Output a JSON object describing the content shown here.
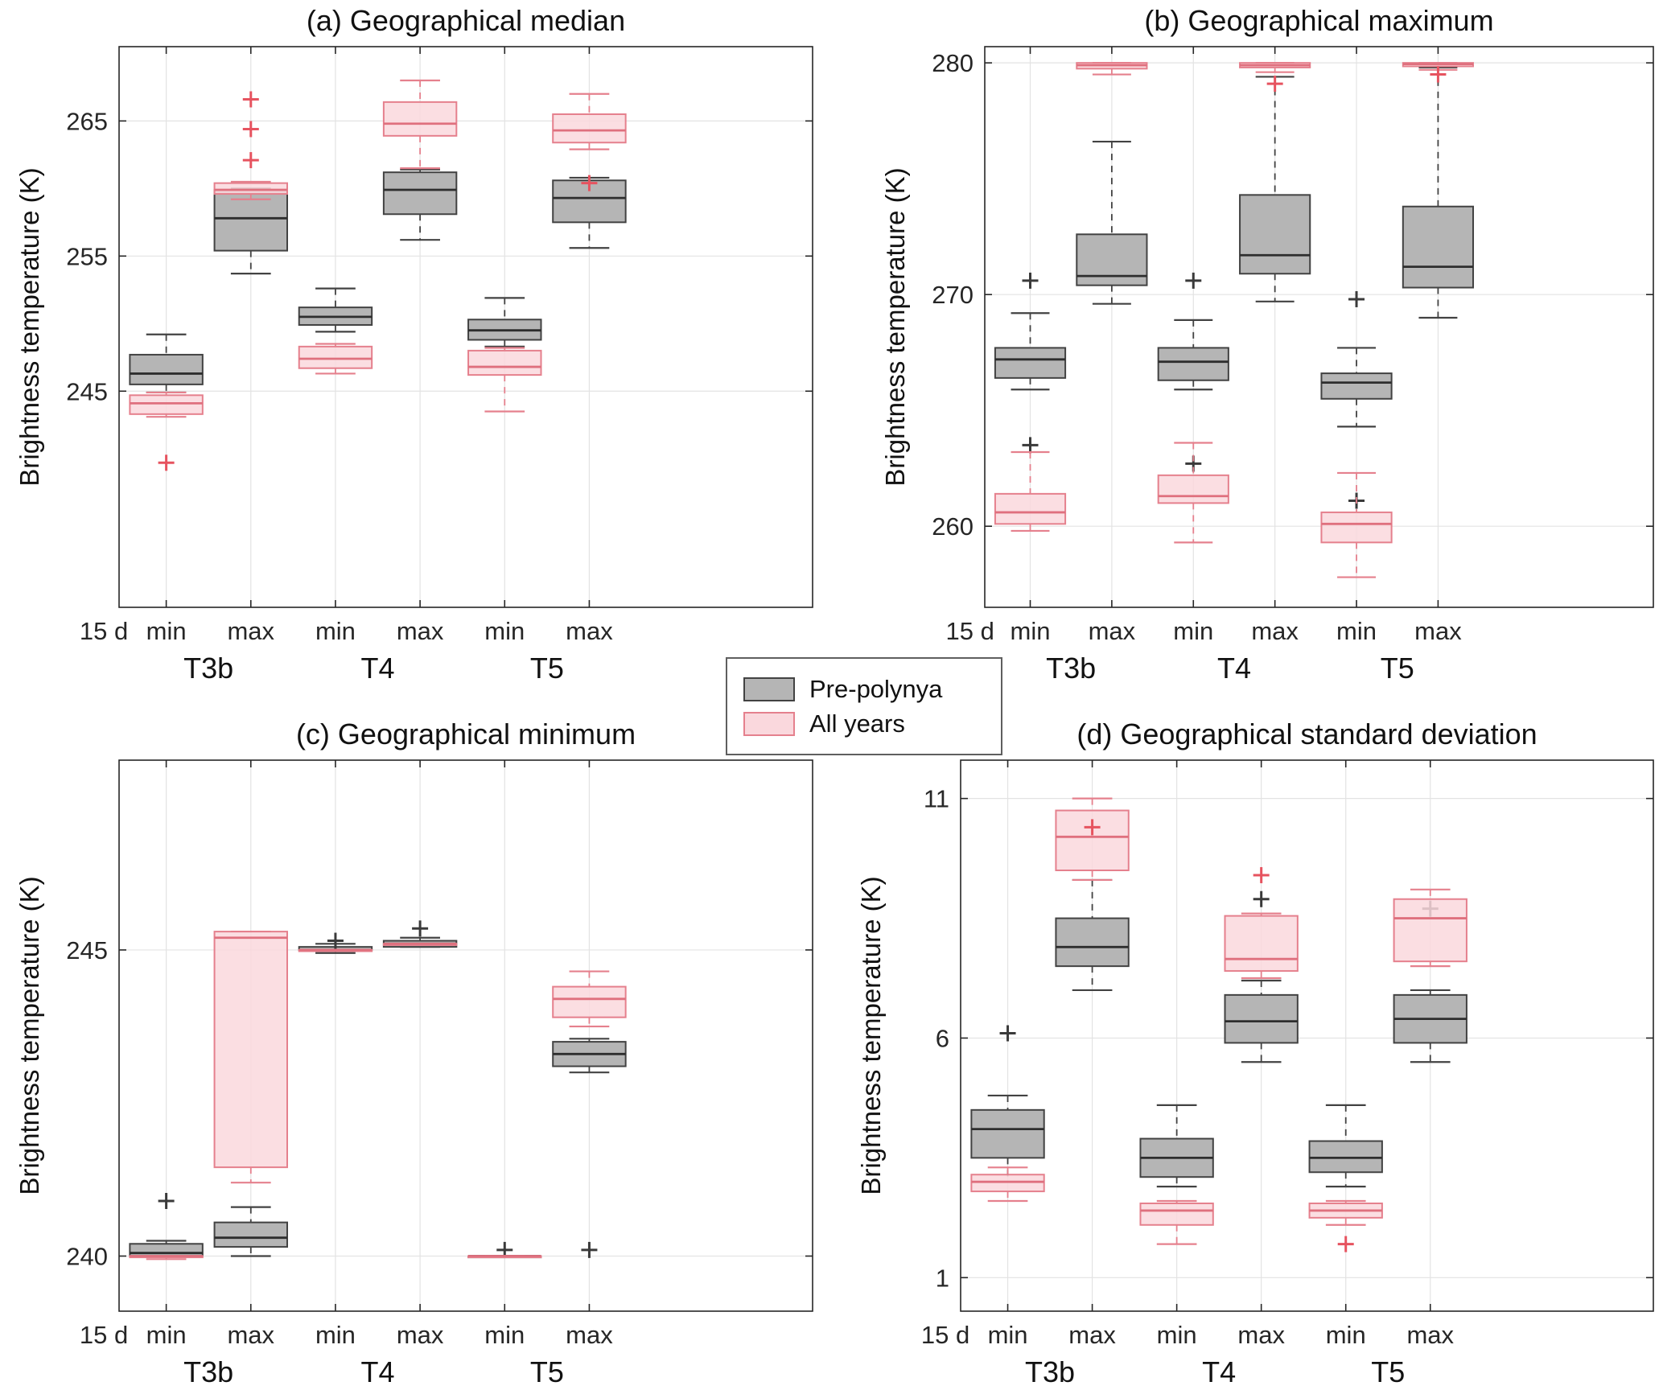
{
  "legend": {
    "items": [
      {
        "label": "Pre-polynya",
        "series": "pre"
      },
      {
        "label": "All years",
        "series": "all"
      }
    ]
  },
  "style": {
    "pre": {
      "fill": "#b5b5b5",
      "edge": "#424242",
      "median": "#2e2e2e",
      "whisker": "#424242",
      "outlier": "#3a3a3a",
      "opacity": 1
    },
    "all": {
      "fill": "#fad8dd",
      "edge": "#e5808d",
      "median": "#df707e",
      "whisker": "#e5808d",
      "outlier": "#e6535f",
      "opacity": 0.85
    },
    "grid": "#e3e3e3",
    "axis": "#262626"
  },
  "chart_data": [
    {
      "type": "boxplot",
      "id": "a",
      "title": "(a) Geographical median",
      "ylabel": "Brightness temperature (K)",
      "ylim": [
        229.0,
        270.5
      ],
      "yticks": [
        245,
        255,
        265
      ],
      "xticklabels": [
        "15 d",
        "min",
        "max",
        "min",
        "max",
        "min",
        "max"
      ],
      "group_labels": [
        "T3b",
        "T4",
        "T5"
      ],
      "boxes": [
        {
          "slot": 1,
          "group": "T3b",
          "window": "min",
          "pre": {
            "lo": 244.9,
            "q1": 245.5,
            "med": 246.3,
            "q3": 247.7,
            "hi": 249.2,
            "out": []
          },
          "all": {
            "lo": 243.1,
            "q1": 243.3,
            "med": 244.1,
            "q3": 244.7,
            "hi": 244.9,
            "out": [
              239.7
            ]
          }
        },
        {
          "slot": 2,
          "group": "T3b",
          "window": "max",
          "pre": {
            "lo": 253.7,
            "q1": 255.4,
            "med": 257.8,
            "q3": 259.9,
            "hi": 260.0,
            "out": []
          },
          "all": {
            "lo": 259.2,
            "q1": 259.6,
            "med": 259.9,
            "q3": 260.4,
            "hi": 260.5,
            "out": [
              266.6,
              264.4,
              262.1
            ]
          }
        },
        {
          "slot": 3,
          "group": "T4",
          "window": "min",
          "pre": {
            "lo": 249.4,
            "q1": 249.9,
            "med": 250.5,
            "q3": 251.2,
            "hi": 252.6,
            "out": []
          },
          "all": {
            "lo": 246.3,
            "q1": 246.7,
            "med": 247.4,
            "q3": 248.3,
            "hi": 248.5,
            "out": []
          }
        },
        {
          "slot": 4,
          "group": "T4",
          "window": "max",
          "pre": {
            "lo": 256.2,
            "q1": 258.1,
            "med": 259.9,
            "q3": 261.2,
            "hi": 261.4,
            "out": []
          },
          "all": {
            "lo": 261.5,
            "q1": 263.9,
            "med": 264.8,
            "q3": 266.4,
            "hi": 268.0,
            "out": []
          }
        },
        {
          "slot": 5,
          "group": "T5",
          "window": "min",
          "pre": {
            "lo": 248.3,
            "q1": 248.8,
            "med": 249.5,
            "q3": 250.3,
            "hi": 251.9,
            "out": []
          },
          "all": {
            "lo": 243.5,
            "q1": 246.2,
            "med": 246.8,
            "q3": 248.0,
            "hi": 248.2,
            "out": []
          }
        },
        {
          "slot": 6,
          "group": "T5",
          "window": "max",
          "pre": {
            "lo": 255.6,
            "q1": 257.5,
            "med": 259.3,
            "q3": 260.6,
            "hi": 260.8,
            "out": []
          },
          "all": {
            "lo": 262.9,
            "q1": 263.4,
            "med": 264.3,
            "q3": 265.5,
            "hi": 267.0,
            "out": [
              260.4
            ]
          }
        }
      ]
    },
    {
      "type": "boxplot",
      "id": "b",
      "title": "(b) Geographical maximum",
      "ylabel": "Brightness temperature (K)",
      "ylim": [
        256.5,
        280.7
      ],
      "yticks": [
        260,
        270,
        280
      ],
      "xticklabels": [
        "15 d",
        "min",
        "max",
        "min",
        "max",
        "min",
        "max"
      ],
      "group_labels": [
        "T3b",
        "T4",
        "T5"
      ],
      "boxes": [
        {
          "slot": 1,
          "group": "T3b",
          "window": "min",
          "pre": {
            "lo": 265.9,
            "q1": 266.4,
            "med": 267.2,
            "q3": 267.7,
            "hi": 269.2,
            "out": [
              270.6,
              263.5
            ]
          },
          "all": {
            "lo": 259.8,
            "q1": 260.1,
            "med": 260.6,
            "q3": 261.4,
            "hi": 263.2,
            "out": []
          }
        },
        {
          "slot": 2,
          "group": "T3b",
          "window": "max",
          "pre": {
            "lo": 269.6,
            "q1": 270.4,
            "med": 270.8,
            "q3": 272.6,
            "hi": 276.6,
            "out": []
          },
          "all": {
            "lo": 279.5,
            "q1": 279.75,
            "med": 279.9,
            "q3": 280.0,
            "hi": 280.0,
            "out": []
          }
        },
        {
          "slot": 3,
          "group": "T4",
          "window": "min",
          "pre": {
            "lo": 265.9,
            "q1": 266.3,
            "med": 267.1,
            "q3": 267.7,
            "hi": 268.9,
            "out": [
              270.6,
              262.7
            ]
          },
          "all": {
            "lo": 259.3,
            "q1": 261.0,
            "med": 261.3,
            "q3": 262.2,
            "hi": 263.6,
            "out": []
          }
        },
        {
          "slot": 4,
          "group": "T4",
          "window": "max",
          "pre": {
            "lo": 269.7,
            "q1": 270.9,
            "med": 271.7,
            "q3": 274.3,
            "hi": 279.4,
            "out": []
          },
          "all": {
            "lo": 279.6,
            "q1": 279.8,
            "med": 279.9,
            "q3": 280.0,
            "hi": 280.0,
            "out": [
              279.1
            ]
          }
        },
        {
          "slot": 5,
          "group": "T5",
          "window": "min",
          "pre": {
            "lo": 264.3,
            "q1": 265.5,
            "med": 266.2,
            "q3": 266.6,
            "hi": 267.7,
            "out": [
              269.8,
              261.1
            ]
          },
          "all": {
            "lo": 257.8,
            "q1": 259.3,
            "med": 260.1,
            "q3": 260.6,
            "hi": 262.3,
            "out": []
          }
        },
        {
          "slot": 6,
          "group": "T5",
          "window": "max",
          "pre": {
            "lo": 269.0,
            "q1": 270.3,
            "med": 271.2,
            "q3": 273.8,
            "hi": 279.8,
            "out": []
          },
          "all": {
            "lo": 279.7,
            "q1": 279.85,
            "med": 279.95,
            "q3": 280.0,
            "hi": 280.0,
            "out": [
              279.5
            ]
          }
        }
      ]
    },
    {
      "type": "boxplot",
      "id": "c",
      "title": "(c) Geographical minimum",
      "ylabel": "Brightness temperature (K)",
      "ylim": [
        239.1,
        248.1
      ],
      "yticks": [
        240,
        245
      ],
      "xticklabels": [
        "15 d",
        "min",
        "max",
        "min",
        "max",
        "min",
        "max"
      ],
      "group_labels": [
        "T3b",
        "T4",
        "T5"
      ],
      "boxes": [
        {
          "slot": 1,
          "group": "T3b",
          "window": "min",
          "pre": {
            "lo": 240.0,
            "q1": 240.0,
            "med": 240.05,
            "q3": 240.2,
            "hi": 240.25,
            "out": [
              240.9
            ]
          },
          "all": {
            "lo": 239.95,
            "q1": 240.0,
            "med": 240.0,
            "q3": 240.0,
            "hi": 240.0,
            "out": []
          }
        },
        {
          "slot": 2,
          "group": "T3b",
          "window": "max",
          "pre": {
            "lo": 240.0,
            "q1": 240.15,
            "med": 240.3,
            "q3": 240.55,
            "hi": 240.8,
            "out": []
          },
          "all": {
            "lo": 241.2,
            "q1": 241.45,
            "med": 245.2,
            "q3": 245.3,
            "hi": 245.3,
            "out": []
          }
        },
        {
          "slot": 3,
          "group": "T4",
          "window": "min",
          "pre": {
            "lo": 244.95,
            "q1": 245.0,
            "med": 245.0,
            "q3": 245.05,
            "hi": 245.1,
            "out": [
              245.15
            ]
          },
          "all": {
            "lo": 245.0,
            "q1": 245.0,
            "med": 245.0,
            "q3": 245.0,
            "hi": 245.0,
            "out": []
          }
        },
        {
          "slot": 4,
          "group": "T4",
          "window": "max",
          "pre": {
            "lo": 245.05,
            "q1": 245.05,
            "med": 245.1,
            "q3": 245.15,
            "hi": 245.2,
            "out": [
              245.35
            ]
          },
          "all": {
            "lo": 245.1,
            "q1": 245.1,
            "med": 245.1,
            "q3": 245.1,
            "hi": 245.1,
            "out": []
          }
        },
        {
          "slot": 5,
          "group": "T5",
          "window": "min",
          "pre": {
            "lo": 240.0,
            "q1": 240.0,
            "med": 240.0,
            "q3": 240.0,
            "hi": 240.0,
            "out": [
              240.1
            ]
          },
          "all": {
            "lo": 240.0,
            "q1": 240.0,
            "med": 240.0,
            "q3": 240.0,
            "hi": 240.0,
            "out": []
          }
        },
        {
          "slot": 6,
          "group": "T5",
          "window": "max",
          "pre": {
            "lo": 243.0,
            "q1": 243.1,
            "med": 243.3,
            "q3": 243.5,
            "hi": 243.55,
            "out": [
              240.1
            ]
          },
          "all": {
            "lo": 243.75,
            "q1": 243.9,
            "med": 244.2,
            "q3": 244.4,
            "hi": 244.65,
            "out": []
          }
        }
      ]
    },
    {
      "type": "boxplot",
      "id": "d",
      "title": "(d) Geographical standard deviation",
      "ylabel": "Brightness temperature (K)",
      "ylim": [
        0.3,
        11.8
      ],
      "yticks": [
        1,
        6,
        11
      ],
      "xticklabels": [
        "15 d",
        "min",
        "max",
        "min",
        "max",
        "min",
        "max"
      ],
      "group_labels": [
        "T3b",
        "T4",
        "T5"
      ],
      "boxes": [
        {
          "slot": 1,
          "group": "T3b",
          "window": "min",
          "pre": {
            "lo": 3.0,
            "q1": 3.5,
            "med": 4.1,
            "q3": 4.5,
            "hi": 4.8,
            "out": [
              6.1
            ]
          },
          "all": {
            "lo": 2.6,
            "q1": 2.8,
            "med": 3.0,
            "q3": 3.15,
            "hi": 3.3,
            "out": []
          }
        },
        {
          "slot": 2,
          "group": "T3b",
          "window": "max",
          "pre": {
            "lo": 7.0,
            "q1": 7.5,
            "med": 7.9,
            "q3": 8.5,
            "hi": 9.3,
            "out": []
          },
          "all": {
            "lo": 9.3,
            "q1": 9.5,
            "med": 10.2,
            "q3": 10.75,
            "hi": 11.0,
            "out": [
              10.4
            ]
          }
        },
        {
          "slot": 3,
          "group": "T4",
          "window": "min",
          "pre": {
            "lo": 2.9,
            "q1": 3.1,
            "med": 3.5,
            "q3": 3.9,
            "hi": 4.6,
            "out": []
          },
          "all": {
            "lo": 1.7,
            "q1": 2.1,
            "med": 2.4,
            "q3": 2.55,
            "hi": 2.6,
            "out": []
          }
        },
        {
          "slot": 4,
          "group": "T4",
          "window": "max",
          "pre": {
            "lo": 5.5,
            "q1": 5.9,
            "med": 6.35,
            "q3": 6.9,
            "hi": 7.2,
            "out": [
              8.9
            ]
          },
          "all": {
            "lo": 7.25,
            "q1": 7.4,
            "med": 7.65,
            "q3": 8.55,
            "hi": 8.6,
            "out": [
              9.4
            ]
          }
        },
        {
          "slot": 5,
          "group": "T5",
          "window": "min",
          "pre": {
            "lo": 2.9,
            "q1": 3.2,
            "med": 3.5,
            "q3": 3.85,
            "hi": 4.6,
            "out": []
          },
          "all": {
            "lo": 2.1,
            "q1": 2.25,
            "med": 2.4,
            "q3": 2.55,
            "hi": 2.6,
            "out": [
              1.7
            ]
          }
        },
        {
          "slot": 6,
          "group": "T5",
          "window": "max",
          "pre": {
            "lo": 5.5,
            "q1": 5.9,
            "med": 6.4,
            "q3": 6.9,
            "hi": 7.0,
            "out": [
              8.7
            ]
          },
          "all": {
            "lo": 7.5,
            "q1": 7.6,
            "med": 8.5,
            "q3": 8.9,
            "hi": 9.1,
            "out": []
          }
        }
      ]
    }
  ]
}
